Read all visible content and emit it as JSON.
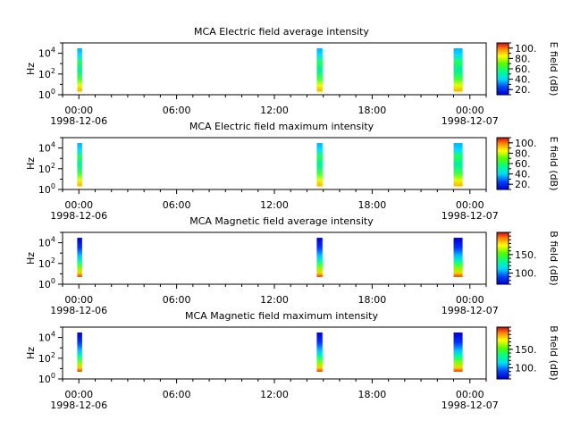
{
  "chart_data": [
    {
      "type": "heatmap",
      "title": "MCA  Electric field average intensity",
      "ylabel": "Hz",
      "y_scale": "log",
      "ylim": [
        1,
        100000
      ],
      "y_ticks": [
        {
          "value": 1,
          "base": "10",
          "exp": "0"
        },
        {
          "value": 100,
          "base": "10",
          "exp": "2"
        },
        {
          "value": 10000,
          "base": "10",
          "exp": "4"
        }
      ],
      "xlim_hours": [
        -1,
        25
      ],
      "x_ticks": [
        {
          "hour": 0,
          "label": "00:00"
        },
        {
          "hour": 6,
          "label": "06:00"
        },
        {
          "hour": 12,
          "label": "12:00"
        },
        {
          "hour": 18,
          "label": "18:00"
        },
        {
          "hour": 24,
          "label": "00:00"
        }
      ],
      "x_date_labels": [
        {
          "hour": 0,
          "label": "1998-12-06"
        },
        {
          "hour": 24,
          "label": "1998-12-07"
        }
      ],
      "colorbar": {
        "label": "E field (dB)",
        "range": [
          10,
          110
        ],
        "ticks": [
          {
            "value": 20,
            "label": "20."
          },
          {
            "value": 40,
            "label": "40."
          },
          {
            "value": 60,
            "label": "60."
          },
          {
            "value": 80,
            "label": "80."
          },
          {
            "value": 100,
            "label": "100."
          }
        ]
      },
      "data_blocks": [
        {
          "start_hour": -0.1,
          "end_hour": 0.2,
          "freq_min_hz": 2,
          "freq_max_hz": 30000
        },
        {
          "start_hour": 14.6,
          "end_hour": 14.95,
          "freq_min_hz": 2,
          "freq_max_hz": 30000
        },
        {
          "start_hour": 23.0,
          "end_hour": 23.55,
          "freq_min_hz": 2,
          "freq_max_hz": 30000
        }
      ]
    },
    {
      "type": "heatmap",
      "title": "MCA  Electric field maximum intensity",
      "ylabel": "Hz",
      "y_scale": "log",
      "ylim": [
        1,
        100000
      ],
      "y_ticks": [
        {
          "value": 1,
          "base": "10",
          "exp": "0"
        },
        {
          "value": 100,
          "base": "10",
          "exp": "2"
        },
        {
          "value": 10000,
          "base": "10",
          "exp": "4"
        }
      ],
      "xlim_hours": [
        -1,
        25
      ],
      "x_ticks": [
        {
          "hour": 0,
          "label": "00:00"
        },
        {
          "hour": 6,
          "label": "06:00"
        },
        {
          "hour": 12,
          "label": "12:00"
        },
        {
          "hour": 18,
          "label": "18:00"
        },
        {
          "hour": 24,
          "label": "00:00"
        }
      ],
      "x_date_labels": [
        {
          "hour": 0,
          "label": "1998-12-06"
        },
        {
          "hour": 24,
          "label": "1998-12-07"
        }
      ],
      "colorbar": {
        "label": "E field (dB)",
        "range": [
          10,
          110
        ],
        "ticks": [
          {
            "value": 20,
            "label": "20."
          },
          {
            "value": 40,
            "label": "40."
          },
          {
            "value": 60,
            "label": "60."
          },
          {
            "value": 80,
            "label": "80."
          },
          {
            "value": 100,
            "label": "100."
          }
        ]
      },
      "data_blocks": [
        {
          "start_hour": -0.1,
          "end_hour": 0.2,
          "freq_min_hz": 2,
          "freq_max_hz": 30000
        },
        {
          "start_hour": 14.6,
          "end_hour": 14.95,
          "freq_min_hz": 2,
          "freq_max_hz": 30000
        },
        {
          "start_hour": 23.0,
          "end_hour": 23.55,
          "freq_min_hz": 2,
          "freq_max_hz": 30000
        }
      ]
    },
    {
      "type": "heatmap",
      "title": "MCA  Magnetic field average intensity",
      "ylabel": "Hz",
      "y_scale": "log",
      "ylim": [
        1,
        100000
      ],
      "y_ticks": [
        {
          "value": 1,
          "base": "10",
          "exp": "0"
        },
        {
          "value": 100,
          "base": "10",
          "exp": "2"
        },
        {
          "value": 10000,
          "base": "10",
          "exp": "4"
        }
      ],
      "xlim_hours": [
        -1,
        25
      ],
      "x_ticks": [
        {
          "hour": 0,
          "label": "00:00"
        },
        {
          "hour": 6,
          "label": "06:00"
        },
        {
          "hour": 12,
          "label": "12:00"
        },
        {
          "hour": 18,
          "label": "18:00"
        },
        {
          "hour": 24,
          "label": "00:00"
        }
      ],
      "x_date_labels": [
        {
          "hour": 0,
          "label": "1998-12-06"
        },
        {
          "hour": 24,
          "label": "1998-12-07"
        }
      ],
      "colorbar": {
        "label": "B field (dB)",
        "range": [
          70,
          210
        ],
        "ticks": [
          {
            "value": 100,
            "label": "100."
          },
          {
            "value": 150,
            "label": "150."
          }
        ]
      },
      "data_blocks": [
        {
          "start_hour": -0.1,
          "end_hour": 0.2,
          "freq_min_hz": 5,
          "freq_max_hz": 30000
        },
        {
          "start_hour": 14.6,
          "end_hour": 14.95,
          "freq_min_hz": 5,
          "freq_max_hz": 30000
        },
        {
          "start_hour": 23.0,
          "end_hour": 23.55,
          "freq_min_hz": 5,
          "freq_max_hz": 30000
        }
      ]
    },
    {
      "type": "heatmap",
      "title": "MCA  Magnetic field maximum intensity",
      "ylabel": "Hz",
      "y_scale": "log",
      "ylim": [
        1,
        100000
      ],
      "y_ticks": [
        {
          "value": 1,
          "base": "10",
          "exp": "0"
        },
        {
          "value": 100,
          "base": "10",
          "exp": "2"
        },
        {
          "value": 10000,
          "base": "10",
          "exp": "4"
        }
      ],
      "xlim_hours": [
        -1,
        25
      ],
      "x_ticks": [
        {
          "hour": 0,
          "label": "00:00"
        },
        {
          "hour": 6,
          "label": "06:00"
        },
        {
          "hour": 12,
          "label": "12:00"
        },
        {
          "hour": 18,
          "label": "18:00"
        },
        {
          "hour": 24,
          "label": "00:00"
        }
      ],
      "x_date_labels": [
        {
          "hour": 0,
          "label": "1998-12-06"
        },
        {
          "hour": 24,
          "label": "1998-12-07"
        }
      ],
      "colorbar": {
        "label": "B field (dB)",
        "range": [
          70,
          210
        ],
        "ticks": [
          {
            "value": 100,
            "label": "100."
          },
          {
            "value": 150,
            "label": "150."
          }
        ]
      },
      "data_blocks": [
        {
          "start_hour": -0.1,
          "end_hour": 0.2,
          "freq_min_hz": 5,
          "freq_max_hz": 30000
        },
        {
          "start_hour": 14.6,
          "end_hour": 14.95,
          "freq_min_hz": 5,
          "freq_max_hz": 30000
        },
        {
          "start_hour": 23.0,
          "end_hour": 23.55,
          "freq_min_hz": 5,
          "freq_max_hz": 30000
        }
      ]
    }
  ]
}
